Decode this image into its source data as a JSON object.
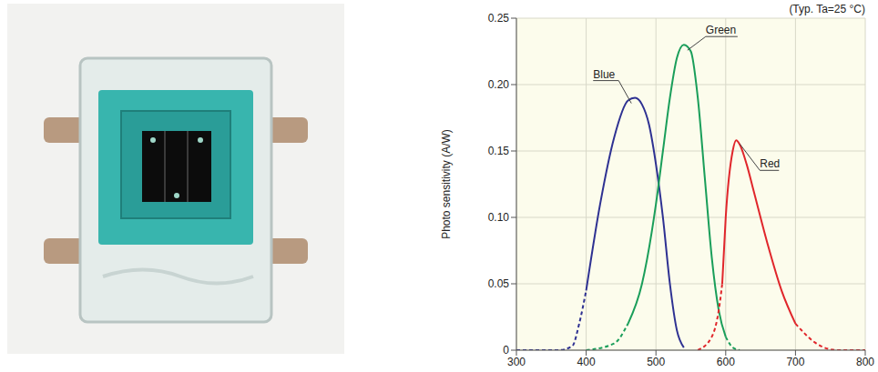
{
  "chart_data": {
    "type": "line",
    "annotations": [
      "(Typ. Ta=25 °C)"
    ],
    "ylabel": "Photo sensitivity (A/W)",
    "xlim": [
      300,
      800
    ],
    "xticks": [
      300,
      400,
      500,
      600,
      700,
      800
    ],
    "ylim": [
      0,
      0.25
    ],
    "yticks": [
      0,
      0.05,
      {
        "value": 0.1,
        "label": "0.10"
      },
      0.15,
      {
        "value": 0.2,
        "label": "0.20"
      },
      0.25
    ],
    "grid": true,
    "series": [
      {
        "name": "Blue",
        "color": "#2e3192",
        "line_style": "dashed",
        "x": [
          300,
          360,
          380,
          390,
          400
        ],
        "values": [
          0,
          0,
          0.003,
          0.02,
          0.045
        ]
      },
      {
        "name": "Blue",
        "color": "#2e3192",
        "line_style": "solid",
        "x": [
          400,
          420,
          440,
          460,
          470,
          480,
          490,
          500,
          510,
          520,
          530,
          540
        ],
        "values": [
          0.045,
          0.11,
          0.16,
          0.188,
          0.19,
          0.185,
          0.17,
          0.14,
          0.1,
          0.05,
          0.015,
          0.002
        ]
      },
      {
        "name": "Green",
        "color": "#1a9e5a",
        "line_style": "dashed",
        "x": [
          400,
          440,
          460
        ],
        "values": [
          0,
          0.005,
          0.02
        ]
      },
      {
        "name": "Green",
        "color": "#1a9e5a",
        "line_style": "solid",
        "x": [
          460,
          480,
          500,
          510,
          520,
          530,
          540,
          550,
          560,
          570,
          580,
          590,
          600
        ],
        "values": [
          0.02,
          0.05,
          0.11,
          0.15,
          0.19,
          0.22,
          0.23,
          0.225,
          0.19,
          0.13,
          0.07,
          0.03,
          0.01
        ]
      },
      {
        "name": "Green",
        "color": "#1a9e5a",
        "line_style": "dashed",
        "x": [
          600,
          610,
          620
        ],
        "values": [
          0.01,
          0.002,
          0
        ]
      },
      {
        "name": "Red",
        "color": "#e0262b",
        "line_style": "dashed",
        "x": [
          560,
          580,
          590,
          595
        ],
        "values": [
          0,
          0.01,
          0.03,
          0.05
        ]
      },
      {
        "name": "Red",
        "color": "#e0262b",
        "line_style": "solid",
        "x": [
          595,
          600,
          610,
          615,
          620,
          630,
          640,
          660,
          680,
          700
        ],
        "values": [
          0.05,
          0.1,
          0.15,
          0.158,
          0.155,
          0.14,
          0.12,
          0.08,
          0.045,
          0.02
        ]
      },
      {
        "name": "Red",
        "color": "#e0262b",
        "line_style": "dashed",
        "x": [
          700,
          730,
          760,
          800
        ],
        "values": [
          0.02,
          0.005,
          0,
          0
        ]
      }
    ]
  }
}
